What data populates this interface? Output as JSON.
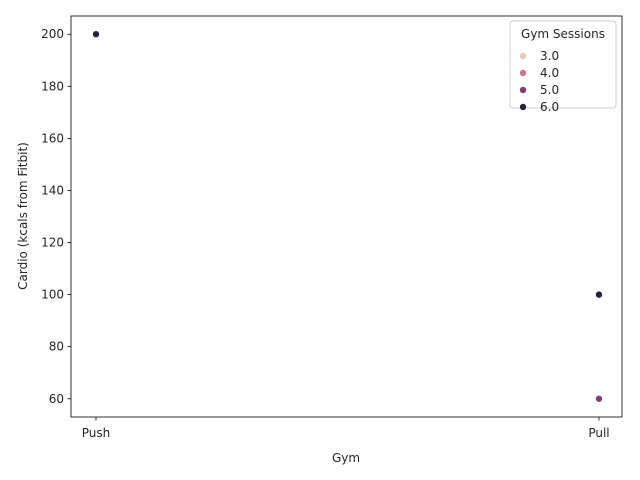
{
  "chart_data": {
    "type": "scatter",
    "title": "",
    "xlabel": "Gym",
    "ylabel": "Cardio (kcals from Fitbit)",
    "categories": [
      "Push",
      "Pull"
    ],
    "ylim": [
      53,
      207
    ],
    "yticks": [
      60,
      80,
      100,
      120,
      140,
      160,
      180,
      200
    ],
    "points": [
      {
        "x": "Push",
        "y": 200,
        "hue": 6.0
      },
      {
        "x": "Pull",
        "y": 100,
        "hue": 6.0
      },
      {
        "x": "Pull",
        "y": 60,
        "hue": 5.0
      }
    ],
    "legend": {
      "title": "Gym Sessions",
      "placement": "top-right",
      "entries": [
        {
          "label": "3.0",
          "value": 3.0,
          "color": "#ebc6c0"
        },
        {
          "label": "4.0",
          "value": 4.0,
          "color": "#c9778f"
        },
        {
          "label": "5.0",
          "value": 5.0,
          "color": "#81406f"
        },
        {
          "label": "6.0",
          "value": 6.0,
          "color": "#2d1e3e"
        }
      ]
    },
    "grid": false
  }
}
